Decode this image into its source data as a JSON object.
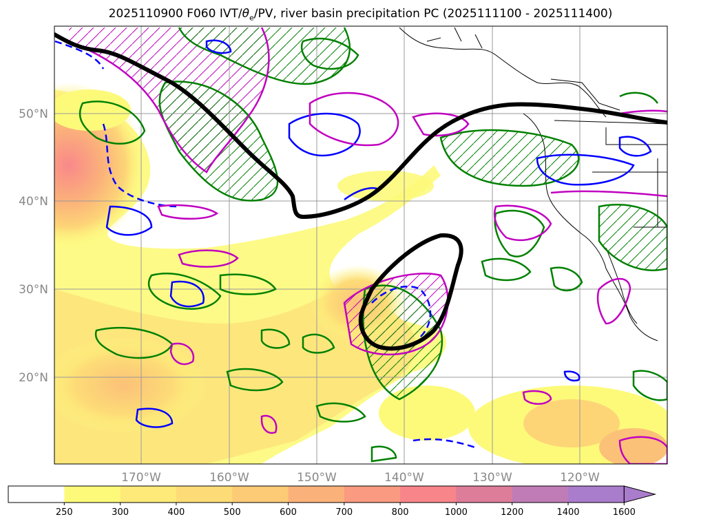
{
  "title": "2025110900 F060 IVT/θe/PV, river basin precipitation PC (2025111100 - 2025111400)",
  "title_parts": {
    "before": "2025110900 F060 IVT/",
    "theta": "θ",
    "sub": "e",
    "after": "/PV, river basin precipitation PC (2025111100 - 2025111400)"
  },
  "map": {
    "lat_labels": [
      "50°N",
      "40°N",
      "30°N",
      "20°N"
    ],
    "lon_labels": [
      "170°W",
      "160°W",
      "150°W",
      "140°W",
      "130°W",
      "120°W"
    ],
    "grid": true,
    "colors": {
      "ivt_low": "#fdfa7a",
      "ivt_mid": "#fdd577",
      "ivt_high": "#f9888a",
      "theta_e_contour": "#008000",
      "pv_contour": "#0000ff",
      "precip_pc_contour": "#c000c0",
      "jet_line": "#000000",
      "coastline": "#000000"
    }
  },
  "colorbar": {
    "levels": [
      "250",
      "300",
      "400",
      "500",
      "600",
      "700",
      "800",
      "1000",
      "1200",
      "1400",
      "1600"
    ],
    "colors": [
      "#ffffff",
      "#fdfa7a",
      "#fdea79",
      "#fddc77",
      "#fdca76",
      "#fbb27a",
      "#fa9a80",
      "#f7858a",
      "#dd7d9a",
      "#c07cb6",
      "#aa7ccc"
    ],
    "extend": "max"
  }
}
